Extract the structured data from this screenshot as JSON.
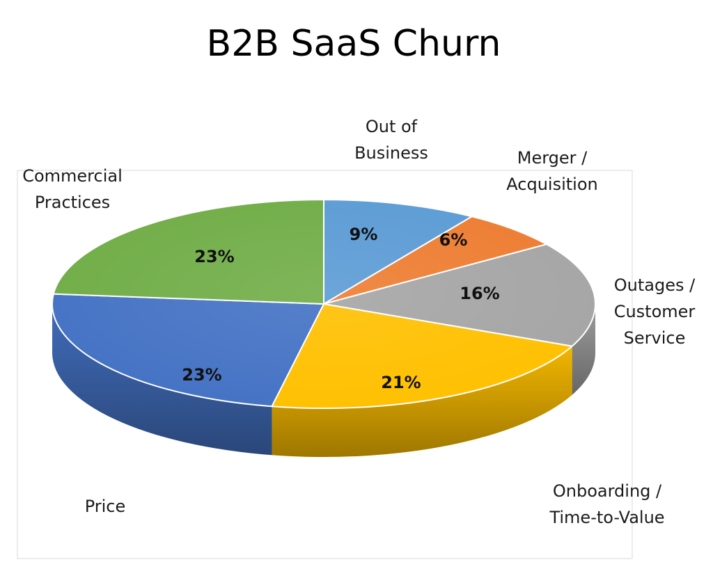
{
  "chart_data": {
    "type": "pie",
    "title": "B2B SaaS Churn",
    "categories": [
      "Out of Business",
      "Merger / Acquisition",
      "Outages / Customer Service",
      "Onboarding / Time-to-Value",
      "Price",
      "Commercial Practices"
    ],
    "values": [
      9,
      6,
      16,
      21,
      23,
      23
    ],
    "value_labels": [
      "9%",
      "6%",
      "16%",
      "21%",
      "23%",
      "23%"
    ],
    "label_lines": [
      [
        "Out of",
        "Business"
      ],
      [
        "Merger /",
        "Acquisition"
      ],
      [
        "Outages /",
        "Customer",
        "Service"
      ],
      [
        "Onboarding /",
        "Time-to-Value"
      ],
      [
        "Price"
      ],
      [
        "Commercial",
        "Practices"
      ]
    ],
    "colors": [
      "#5B9BD5",
      "#ED7D31",
      "#A5A5A5",
      "#FFC000",
      "#4472C4",
      "#70AD47"
    ],
    "style": "3d-pie",
    "legend": "none",
    "start_angle": "12 o'clock",
    "direction": "clockwise"
  }
}
